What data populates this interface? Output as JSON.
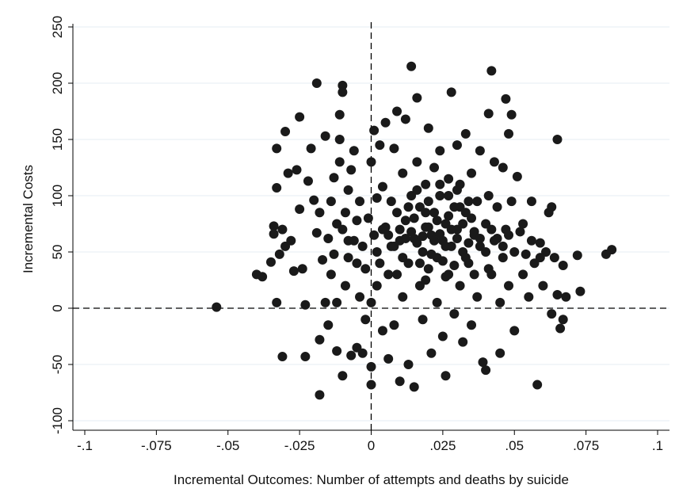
{
  "chart_data": {
    "type": "scatter",
    "title": "",
    "xlabel": "Incremental Outcomes: Number of attempts and deaths by suicide",
    "ylabel": "Incremental Costs",
    "xlim": [
      -0.1,
      0.1
    ],
    "ylim": [
      -100,
      250
    ],
    "x_ticks": [
      -0.1,
      -0.075,
      -0.05,
      -0.025,
      0,
      0.025,
      0.05,
      0.075,
      0.1
    ],
    "x_tick_labels": [
      "-.1",
      "-.075",
      "-.05",
      "-.025",
      "0",
      ".025",
      ".05",
      ".075",
      ".1"
    ],
    "y_ticks": [
      -100,
      -50,
      0,
      50,
      100,
      150,
      200,
      250
    ],
    "y_tick_labels": [
      "-100",
      "-50",
      "0",
      "50",
      "100",
      "150",
      "200",
      "250"
    ],
    "reference_lines": {
      "x": 0,
      "y": 0,
      "style": "dashed"
    },
    "grid": "horizontal",
    "marker_color": "#1a1a1a",
    "series": [
      {
        "points": [
          [
            -0.054,
            1
          ],
          [
            -0.04,
            30
          ],
          [
            -0.038,
            28
          ],
          [
            -0.035,
            41
          ],
          [
            -0.034,
            73
          ],
          [
            -0.034,
            66
          ],
          [
            -0.033,
            142
          ],
          [
            -0.033,
            107
          ],
          [
            -0.033,
            5
          ],
          [
            -0.032,
            48
          ],
          [
            -0.031,
            70
          ],
          [
            -0.031,
            -43
          ],
          [
            -0.03,
            157
          ],
          [
            -0.03,
            55
          ],
          [
            -0.029,
            120
          ],
          [
            -0.028,
            60
          ],
          [
            -0.027,
            33
          ],
          [
            -0.026,
            123
          ],
          [
            -0.025,
            170
          ],
          [
            -0.025,
            88
          ],
          [
            -0.024,
            35
          ],
          [
            -0.023,
            -43
          ],
          [
            -0.023,
            3
          ],
          [
            -0.022,
            113
          ],
          [
            -0.021,
            142
          ],
          [
            -0.02,
            96
          ],
          [
            -0.019,
            200
          ],
          [
            -0.019,
            67
          ],
          [
            -0.018,
            85
          ],
          [
            -0.018,
            -28
          ],
          [
            -0.018,
            -77
          ],
          [
            -0.017,
            43
          ],
          [
            -0.016,
            153
          ],
          [
            -0.016,
            5
          ],
          [
            -0.015,
            -15
          ],
          [
            -0.015,
            62
          ],
          [
            -0.014,
            95
          ],
          [
            -0.014,
            30
          ],
          [
            -0.013,
            116
          ],
          [
            -0.013,
            48
          ],
          [
            -0.012,
            -38
          ],
          [
            -0.012,
            5
          ],
          [
            -0.011,
            150
          ],
          [
            -0.011,
            130
          ],
          [
            -0.011,
            172
          ],
          [
            -0.01,
            198
          ],
          [
            -0.01,
            192
          ],
          [
            -0.01,
            70
          ],
          [
            -0.01,
            -60
          ],
          [
            -0.009,
            85
          ],
          [
            -0.009,
            20
          ],
          [
            -0.008,
            105
          ],
          [
            -0.008,
            45
          ],
          [
            -0.007,
            123
          ],
          [
            -0.007,
            -42
          ],
          [
            -0.006,
            60
          ],
          [
            -0.006,
            140
          ],
          [
            -0.005,
            78
          ],
          [
            -0.005,
            -35
          ],
          [
            -0.004,
            95
          ],
          [
            -0.004,
            10
          ],
          [
            -0.003,
            55
          ],
          [
            -0.003,
            -40
          ],
          [
            -0.002,
            35
          ],
          [
            -0.002,
            -10
          ],
          [
            -0.001,
            80
          ],
          [
            0,
            130
          ],
          [
            0,
            5
          ],
          [
            0,
            -52
          ],
          [
            0,
            -68
          ],
          [
            0.001,
            158
          ],
          [
            0.001,
            65
          ],
          [
            0.002,
            98
          ],
          [
            0.002,
            20
          ],
          [
            0.003,
            145
          ],
          [
            0.003,
            40
          ],
          [
            0.004,
            108
          ],
          [
            0.004,
            -20
          ],
          [
            0.005,
            165
          ],
          [
            0.005,
            72
          ],
          [
            0.006,
            30
          ],
          [
            0.006,
            -45
          ],
          [
            0.007,
            95
          ],
          [
            0.007,
            55
          ],
          [
            0.008,
            142
          ],
          [
            0.008,
            -15
          ],
          [
            0.009,
            175
          ],
          [
            0.009,
            85
          ],
          [
            0.01,
            60
          ],
          [
            0.01,
            -65
          ],
          [
            0.011,
            120
          ],
          [
            0.011,
            10
          ],
          [
            0.012,
            168
          ],
          [
            0.012,
            78
          ],
          [
            0.013,
            -50
          ],
          [
            0.013,
            40
          ],
          [
            0.014,
            100
          ],
          [
            0.014,
            215
          ],
          [
            0.015,
            62
          ],
          [
            0.015,
            -70
          ],
          [
            0.016,
            187
          ],
          [
            0.016,
            130
          ],
          [
            0.017,
            90
          ],
          [
            0.017,
            20
          ],
          [
            0.018,
            50
          ],
          [
            0.018,
            -10
          ],
          [
            0.019,
            110
          ],
          [
            0.019,
            72
          ],
          [
            0.02,
            160
          ],
          [
            0.02,
            35
          ],
          [
            0.021,
            65
          ],
          [
            0.021,
            -40
          ],
          [
            0.022,
            125
          ],
          [
            0.022,
            85
          ],
          [
            0.023,
            5
          ],
          [
            0.023,
            45
          ],
          [
            0.024,
            140
          ],
          [
            0.024,
            100
          ],
          [
            0.025,
            60
          ],
          [
            0.025,
            -25
          ],
          [
            0.026,
            75
          ],
          [
            0.026,
            -60
          ],
          [
            0.027,
            115
          ],
          [
            0.027,
            30
          ],
          [
            0.028,
            192
          ],
          [
            0.028,
            55
          ],
          [
            0.029,
            90
          ],
          [
            0.029,
            -5
          ],
          [
            0.03,
            145
          ],
          [
            0.03,
            70
          ],
          [
            0.031,
            20
          ],
          [
            0.031,
            110
          ],
          [
            0.032,
            50
          ],
          [
            0.032,
            -30
          ],
          [
            0.033,
            155
          ],
          [
            0.033,
            85
          ],
          [
            0.034,
            40
          ],
          [
            0.035,
            120
          ],
          [
            0.035,
            -15
          ],
          [
            0.036,
            65
          ],
          [
            0.037,
            95
          ],
          [
            0.037,
            10
          ],
          [
            0.038,
            140
          ],
          [
            0.038,
            55
          ],
          [
            0.039,
            -48
          ],
          [
            0.04,
            75
          ],
          [
            0.04,
            -55
          ],
          [
            0.041,
            173
          ],
          [
            0.041,
            100
          ],
          [
            0.042,
            211
          ],
          [
            0.042,
            30
          ],
          [
            0.043,
            130
          ],
          [
            0.043,
            60
          ],
          [
            0.044,
            90
          ],
          [
            0.045,
            5
          ],
          [
            0.045,
            -40
          ],
          [
            0.046,
            125
          ],
          [
            0.046,
            45
          ],
          [
            0.047,
            186
          ],
          [
            0.047,
            70
          ],
          [
            0.048,
            155
          ],
          [
            0.048,
            20
          ],
          [
            0.049,
            172
          ],
          [
            0.049,
            95
          ],
          [
            0.05,
            50
          ],
          [
            0.05,
            -20
          ],
          [
            0.051,
            117
          ],
          [
            0.052,
            68
          ],
          [
            0.053,
            30
          ],
          [
            0.054,
            48
          ],
          [
            0.055,
            10
          ],
          [
            0.056,
            95
          ],
          [
            0.057,
            40
          ],
          [
            0.058,
            -68
          ],
          [
            0.059,
            58
          ],
          [
            0.06,
            20
          ],
          [
            0.061,
            50
          ],
          [
            0.062,
            85
          ],
          [
            0.063,
            -5
          ],
          [
            0.063,
            90
          ],
          [
            0.064,
            45
          ],
          [
            0.065,
            150
          ],
          [
            0.065,
            12
          ],
          [
            0.066,
            -18
          ],
          [
            0.067,
            38
          ],
          [
            0.067,
            -10
          ],
          [
            0.068,
            10
          ],
          [
            0.072,
            47
          ],
          [
            0.073,
            15
          ],
          [
            0.082,
            48
          ],
          [
            0.084,
            52
          ],
          [
            0.01,
            70
          ],
          [
            0.012,
            62
          ],
          [
            0.014,
            68
          ],
          [
            0.016,
            58
          ],
          [
            0.018,
            64
          ],
          [
            0.02,
            72
          ],
          [
            0.022,
            60
          ],
          [
            0.024,
            66
          ],
          [
            0.026,
            55
          ],
          [
            0.028,
            70
          ],
          [
            0.03,
            62
          ],
          [
            0.032,
            75
          ],
          [
            0.034,
            58
          ],
          [
            0.036,
            68
          ],
          [
            0.038,
            62
          ],
          [
            0.04,
            50
          ],
          [
            0.015,
            80
          ],
          [
            0.019,
            85
          ],
          [
            0.023,
            78
          ],
          [
            0.027,
            82
          ],
          [
            0.031,
            90
          ],
          [
            0.035,
            80
          ],
          [
            0.011,
            45
          ],
          [
            0.017,
            40
          ],
          [
            0.021,
            48
          ],
          [
            0.025,
            42
          ],
          [
            0.029,
            38
          ],
          [
            0.033,
            45
          ],
          [
            0.008,
            55
          ],
          [
            0.006,
            65
          ],
          [
            0.004,
            70
          ],
          [
            0.002,
            50
          ],
          [
            0.042,
            70
          ],
          [
            0.044,
            62
          ],
          [
            0.046,
            55
          ],
          [
            0.048,
            65
          ],
          [
            0.013,
            90
          ],
          [
            0.02,
            95
          ],
          [
            0.027,
            100
          ],
          [
            0.034,
            95
          ],
          [
            0.016,
            105
          ],
          [
            0.024,
            110
          ],
          [
            0.03,
            105
          ],
          [
            0.009,
            30
          ],
          [
            0.019,
            25
          ],
          [
            0.026,
            28
          ],
          [
            0.036,
            30
          ],
          [
            0.041,
            35
          ],
          [
            -0.005,
            40
          ],
          [
            -0.008,
            60
          ],
          [
            -0.012,
            75
          ],
          [
            0.053,
            75
          ],
          [
            0.056,
            60
          ],
          [
            0.059,
            45
          ]
        ]
      }
    ]
  }
}
